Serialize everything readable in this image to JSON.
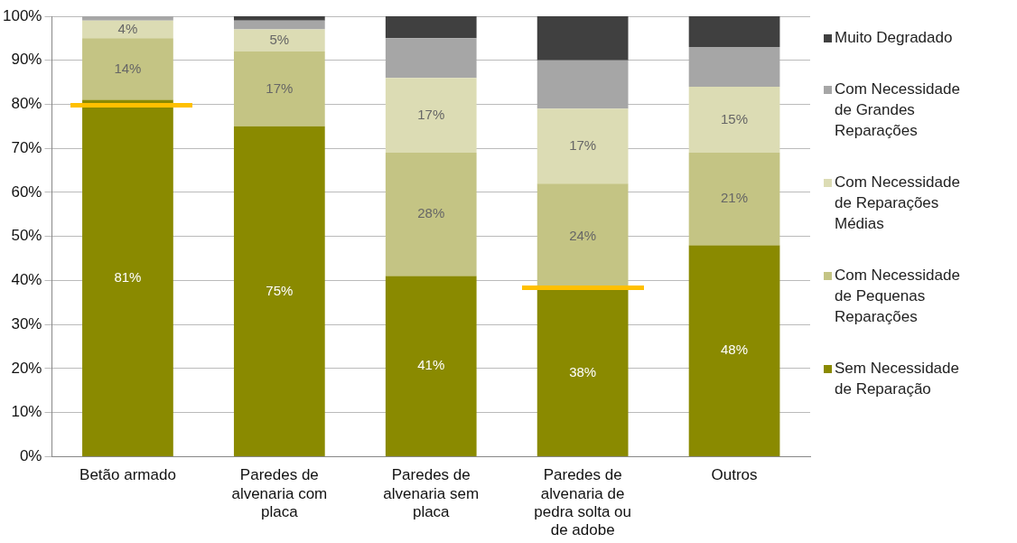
{
  "chart_data": {
    "type": "bar",
    "stacked": true,
    "categories": [
      "Betão armado",
      "Paredes de alvenaria com placa",
      "Paredes de alvenaria sem placa",
      "Paredes de alvenaria de pedra solta ou de adobe",
      "Outros"
    ],
    "series": [
      {
        "name": "Sem Necessidade de Reparação",
        "color": "#8a8a00",
        "values": [
          81,
          75,
          41,
          38,
          48
        ],
        "value_labels": [
          "81%",
          "75%",
          "41%",
          "38%",
          "48%"
        ]
      },
      {
        "name": "Com Necessidade de Pequenas Reparações",
        "color": "#c4c484",
        "values": [
          14,
          17,
          28,
          24,
          21
        ],
        "value_labels": [
          "14%",
          "17%",
          "28%",
          "24%",
          "21%"
        ]
      },
      {
        "name": "Com Necessidade de Reparações Médias",
        "color": "#dcdcb4",
        "values": [
          4,
          5,
          17,
          17,
          15
        ],
        "value_labels": [
          "4%",
          "5%",
          "17%",
          "17%",
          "15%"
        ]
      },
      {
        "name": "Com Necessidade de Grandes Reparações",
        "color": "#a6a6a6",
        "values": [
          1,
          2,
          9,
          11,
          9
        ]
      },
      {
        "name": "Muito Degradado",
        "color": "#404040",
        "values": [
          0,
          1,
          5,
          10,
          7
        ]
      }
    ],
    "ylim": [
      0,
      100
    ],
    "yticks": [
      {
        "value": 0,
        "label": "0%"
      },
      {
        "value": 10,
        "label": "10%"
      },
      {
        "value": 20,
        "label": "20%"
      },
      {
        "value": 30,
        "label": "30%"
      },
      {
        "value": 40,
        "label": "40%"
      },
      {
        "value": 50,
        "label": "50%"
      },
      {
        "value": 60,
        "label": "60%"
      },
      {
        "value": 70,
        "label": "70%"
      },
      {
        "value": 80,
        "label": "80%"
      },
      {
        "value": 90,
        "label": "90%"
      },
      {
        "value": 100,
        "label": "100%"
      }
    ],
    "grid": "y",
    "legend": "right"
  }
}
